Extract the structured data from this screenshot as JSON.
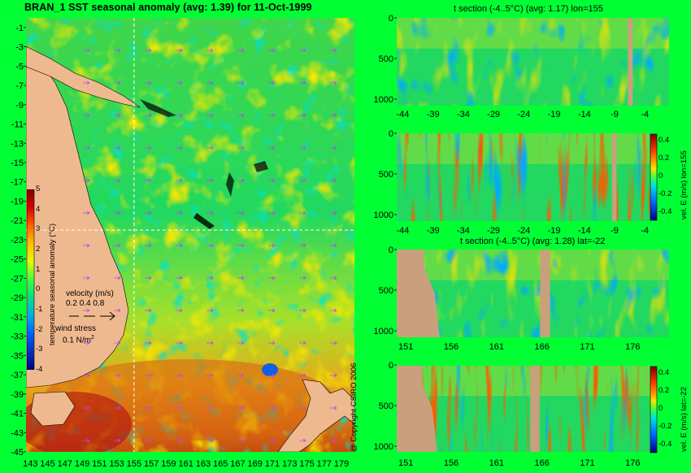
{
  "main_title": "BRAN_1  SST seasonal anomaly (avg: 1.39) for 11-Oct-1999",
  "copyright": "@ Copyright CSIRO 2006",
  "colors": {
    "background": "#00ff33",
    "land": "#efb98f",
    "section_land": "#c8a07e"
  },
  "chart_data": [
    {
      "type": "heatmap",
      "name": "map",
      "x": [
        143,
        145,
        147,
        149,
        151,
        153,
        155,
        157,
        159,
        161,
        163,
        165,
        167,
        169,
        171,
        173,
        175,
        177,
        179
      ],
      "y": [
        -1,
        -3,
        -5,
        -7,
        -9,
        -11,
        -13,
        -15,
        -17,
        -19,
        -21,
        -23,
        -25,
        -27,
        -29,
        -31,
        -33,
        -35,
        -37,
        -39,
        -41,
        -43,
        -45
      ],
      "xlim": [
        142.5,
        180.5
      ],
      "ylim": [
        -45,
        0
      ],
      "crosshair": {
        "lon": 155,
        "lat": -22
      },
      "colorbar": {
        "label": "temperature seasonal anomaly (°C)",
        "ticks": [
          5,
          4,
          3,
          2,
          1,
          0,
          -1,
          -2,
          -3,
          -4
        ],
        "range": [
          -4,
          5
        ]
      },
      "velocity_legend": {
        "title": "velocity (m/s)",
        "ticks": [
          "0.2",
          "0.4",
          "0.8"
        ]
      },
      "wind_legend": {
        "title": "wind stress",
        "value": "0.1 N/m",
        "unit_sup": "2"
      }
    },
    {
      "type": "heatmap",
      "name": "section1",
      "title": "t section (-4..5°C) (avg: 1.17) lon=155",
      "x": [
        -44,
        -39,
        -34,
        -29,
        -24,
        -19,
        -14,
        -9,
        -4
      ],
      "y": [
        0,
        500,
        1000
      ],
      "xlim": [
        -45,
        0
      ],
      "ylim": [
        0,
        1050
      ]
    },
    {
      "type": "heatmap",
      "name": "section2",
      "x": [
        -44,
        -39,
        -34,
        -29,
        -24,
        -19,
        -14,
        -9,
        -4
      ],
      "y": [
        0,
        500,
        1000
      ],
      "xlim": [
        -45,
        0
      ],
      "ylim": [
        0,
        1050
      ],
      "colorbar": {
        "label": "vel. E (m/s) lon=155",
        "ticks": [
          "0.4",
          "0.2",
          "0",
          "-0.2",
          "-0.4"
        ]
      }
    },
    {
      "type": "heatmap",
      "name": "section3",
      "title": "t section (-4..5°C) (avg: 1.28) lat=-22",
      "x": [
        151,
        156,
        161,
        166,
        171,
        176
      ],
      "y": [
        0,
        500,
        1000
      ],
      "xlim": [
        150,
        180
      ],
      "ylim": [
        0,
        1050
      ]
    },
    {
      "type": "heatmap",
      "name": "section4",
      "x": [
        151,
        156,
        161,
        166,
        171,
        176
      ],
      "y": [
        0,
        500,
        1000
      ],
      "xlim": [
        150,
        180
      ],
      "ylim": [
        0,
        1050
      ],
      "colorbar": {
        "label": "vel. E (m/s) lat=-22",
        "ticks": [
          "0.4",
          "0.2",
          "0",
          "-0.2",
          "-0.4"
        ]
      }
    }
  ]
}
